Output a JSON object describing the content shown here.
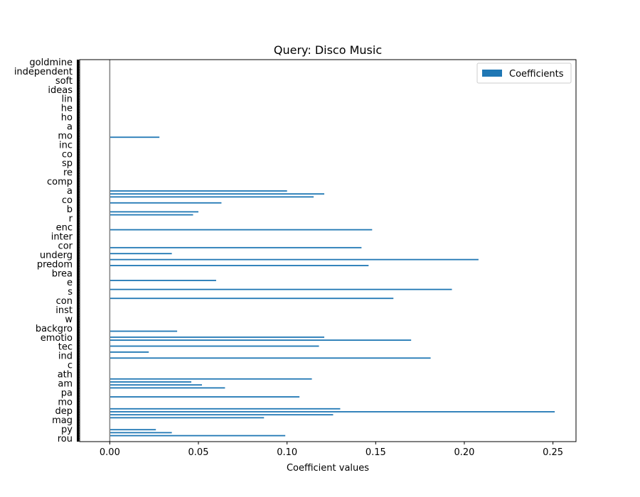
{
  "chart_data": {
    "type": "bar",
    "orientation": "horizontal",
    "title": "Query: Disco Music",
    "xlabel": "Coefficient values",
    "ylabel": "",
    "xlim": [
      -0.017,
      0.263
    ],
    "xticks": [
      "0.00",
      "0.05",
      "0.10",
      "0.15",
      "0.20",
      "0.25"
    ],
    "xtick_values": [
      0,
      0.05,
      0.1,
      0.15,
      0.2,
      0.25
    ],
    "bar_count": 300,
    "zero_line": 0,
    "legend": {
      "location": "top-right",
      "entries": [
        "Coefficients"
      ]
    },
    "series": [
      {
        "name": "Coefficients",
        "color": "#1f77b4",
        "nonzero": [
          {
            "rank": 26,
            "value": 0.028
          },
          {
            "rank": 44,
            "value": 0.1
          },
          {
            "rank": 45,
            "value": 0.121
          },
          {
            "rank": 46,
            "value": 0.115
          },
          {
            "rank": 48,
            "value": 0.063
          },
          {
            "rank": 51,
            "value": 0.05
          },
          {
            "rank": 52,
            "value": 0.047
          },
          {
            "rank": 57,
            "value": 0.148
          },
          {
            "rank": 63,
            "value": 0.142
          },
          {
            "rank": 65,
            "value": 0.035
          },
          {
            "rank": 67,
            "value": 0.208
          },
          {
            "rank": 69,
            "value": 0.146
          },
          {
            "rank": 74,
            "value": 0.06
          },
          {
            "rank": 77,
            "value": 0.193
          },
          {
            "rank": 80,
            "value": 0.16
          },
          {
            "rank": 91,
            "value": 0.038
          },
          {
            "rank": 93,
            "value": 0.121
          },
          {
            "rank": 94,
            "value": 0.17
          },
          {
            "rank": 96,
            "value": 0.118
          },
          {
            "rank": 98,
            "value": 0.022
          },
          {
            "rank": 100,
            "value": 0.181
          },
          {
            "rank": 107,
            "value": 0.114
          },
          {
            "rank": 108,
            "value": 0.046
          },
          {
            "rank": 109,
            "value": 0.052
          },
          {
            "rank": 110,
            "value": 0.065
          },
          {
            "rank": 113,
            "value": 0.107
          },
          {
            "rank": 117,
            "value": 0.13
          },
          {
            "rank": 118,
            "value": 0.251
          },
          {
            "rank": 119,
            "value": 0.126
          },
          {
            "rank": 120,
            "value": 0.087
          },
          {
            "rank": 124,
            "value": 0.026
          },
          {
            "rank": 125,
            "value": 0.035
          },
          {
            "rank": 126,
            "value": 0.099
          }
        ]
      }
    ],
    "yticklabels_legible": [
      "goldmine",
      "independent",
      "soft",
      "ideas",
      "lin",
      "he",
      "ho",
      "a",
      "mo",
      "inc",
      "co",
      "sp",
      "re",
      "comp",
      "a",
      "co",
      "b",
      "r",
      "enc",
      "inter",
      "cor",
      "underg",
      "predom",
      "brea",
      "e",
      "s",
      "con",
      "inst",
      "w",
      "backgro",
      "emotio",
      "tec",
      "ind",
      "c",
      "ath",
      "am",
      "pa",
      "mo",
      "dep",
      "mag",
      "py",
      "rou"
    ]
  }
}
